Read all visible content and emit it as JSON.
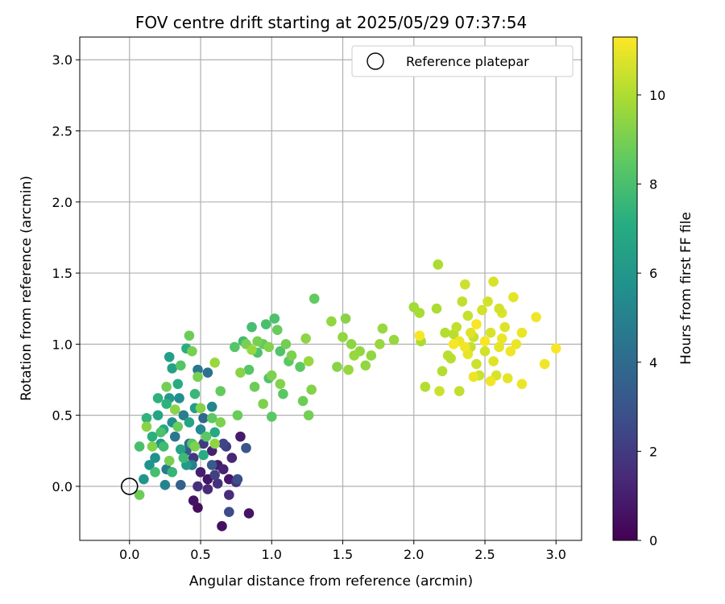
{
  "chart_data": {
    "type": "scatter",
    "title": "FOV centre drift starting at 2025/05/29 07:37:54",
    "xlabel": "Angular distance from reference (arcmin)",
    "ylabel": "Rotation from reference (arcmin)",
    "xlim": [
      -0.35,
      3.18
    ],
    "ylim": [
      -0.38,
      3.16
    ],
    "xticks": [
      "0.0",
      "0.5",
      "1.0",
      "1.5",
      "2.0",
      "2.5",
      "3.0"
    ],
    "yticks": [
      "0.0",
      "0.5",
      "1.0",
      "1.5",
      "2.0",
      "2.5",
      "3.0"
    ],
    "grid": true,
    "legend": {
      "placement": "top-right",
      "entries": [
        {
          "label": "Reference platepar",
          "marker": "open-circle"
        }
      ]
    },
    "reference_point": {
      "x": 0.0,
      "y": 0.0
    },
    "colorbar": {
      "label": "Hours from first FF file",
      "colormap": "viridis",
      "range": [
        0,
        11.3
      ],
      "ticks": [
        "0",
        "2",
        "4",
        "6",
        "8",
        "10"
      ]
    },
    "series": [
      {
        "color_by": "hours",
        "points": [
          {
            "x": 0.48,
            "y": -0.15,
            "c": 0.4
          },
          {
            "x": 0.65,
            "y": -0.28,
            "c": 0.5
          },
          {
            "x": 0.84,
            "y": -0.19,
            "c": 0.6
          },
          {
            "x": 0.45,
            "y": -0.1,
            "c": 0.6
          },
          {
            "x": 0.55,
            "y": 0.05,
            "c": 0.7
          },
          {
            "x": 0.7,
            "y": 0.05,
            "c": 0.8
          },
          {
            "x": 0.62,
            "y": 0.15,
            "c": 0.9
          },
          {
            "x": 0.78,
            "y": 0.35,
            "c": 0.9
          },
          {
            "x": 0.5,
            "y": 0.1,
            "c": 1.0
          },
          {
            "x": 0.58,
            "y": 0.25,
            "c": 1.1
          },
          {
            "x": 0.66,
            "y": 0.12,
            "c": 1.2
          },
          {
            "x": 0.72,
            "y": 0.2,
            "c": 1.3
          },
          {
            "x": 0.55,
            "y": -0.02,
            "c": 1.4
          },
          {
            "x": 0.7,
            "y": -0.06,
            "c": 1.5
          },
          {
            "x": 0.48,
            "y": 0.0,
            "c": 1.6
          },
          {
            "x": 0.62,
            "y": 0.02,
            "c": 1.7
          },
          {
            "x": 0.75,
            "y": 0.03,
            "c": 1.8
          },
          {
            "x": 0.45,
            "y": 0.2,
            "c": 1.9
          },
          {
            "x": 0.52,
            "y": 0.3,
            "c": 2.0
          },
          {
            "x": 0.68,
            "y": 0.28,
            "c": 2.1
          },
          {
            "x": 0.6,
            "y": 0.08,
            "c": 2.2
          },
          {
            "x": 0.66,
            "y": 0.3,
            "c": 2.4
          },
          {
            "x": 0.7,
            "y": -0.18,
            "c": 2.6
          },
          {
            "x": 0.76,
            "y": 0.05,
            "c": 2.8
          },
          {
            "x": 0.82,
            "y": 0.27,
            "c": 3.0
          },
          {
            "x": 0.4,
            "y": 0.25,
            "c": 3.2
          },
          {
            "x": 0.58,
            "y": 0.15,
            "c": 3.3
          },
          {
            "x": 0.36,
            "y": 0.01,
            "c": 3.5
          },
          {
            "x": 0.52,
            "y": 0.48,
            "c": 3.8
          },
          {
            "x": 0.42,
            "y": 0.3,
            "c": 4.0
          },
          {
            "x": 0.55,
            "y": 0.8,
            "c": 4.3
          },
          {
            "x": 0.48,
            "y": 0.82,
            "c": 4.5
          },
          {
            "x": 0.32,
            "y": 0.35,
            "c": 4.6
          },
          {
            "x": 0.26,
            "y": 0.12,
            "c": 4.7
          },
          {
            "x": 0.38,
            "y": 0.5,
            "c": 4.8
          },
          {
            "x": 0.44,
            "y": 0.15,
            "c": 5.0
          },
          {
            "x": 0.25,
            "y": 0.01,
            "c": 5.1
          },
          {
            "x": 0.58,
            "y": 0.56,
            "c": 5.2
          },
          {
            "x": 0.5,
            "y": 0.4,
            "c": 5.4
          },
          {
            "x": 0.35,
            "y": 0.62,
            "c": 5.5
          },
          {
            "x": 0.3,
            "y": 0.45,
            "c": 5.6
          },
          {
            "x": 0.18,
            "y": 0.2,
            "c": 5.7
          },
          {
            "x": 0.14,
            "y": 0.15,
            "c": 5.8
          },
          {
            "x": 0.1,
            "y": 0.05,
            "c": 5.9
          },
          {
            "x": 0.22,
            "y": 0.3,
            "c": 6.0
          },
          {
            "x": 0.28,
            "y": 0.62,
            "c": 6.1
          },
          {
            "x": 0.4,
            "y": 0.15,
            "c": 6.2
          },
          {
            "x": 0.46,
            "y": 0.55,
            "c": 6.3
          },
          {
            "x": 0.28,
            "y": 0.91,
            "c": 6.4
          },
          {
            "x": 0.3,
            "y": 0.83,
            "c": 6.5
          },
          {
            "x": 0.36,
            "y": 0.26,
            "c": 6.5
          },
          {
            "x": 0.42,
            "y": 0.45,
            "c": 6.6
          },
          {
            "x": 0.2,
            "y": 0.5,
            "c": 6.7
          },
          {
            "x": 0.24,
            "y": 0.4,
            "c": 6.8
          },
          {
            "x": 0.6,
            "y": 0.38,
            "c": 6.9
          },
          {
            "x": 0.52,
            "y": 0.22,
            "c": 7.0
          },
          {
            "x": 0.34,
            "y": 0.72,
            "c": 7.0
          },
          {
            "x": 0.4,
            "y": 0.97,
            "c": 7.1
          },
          {
            "x": 0.16,
            "y": 0.35,
            "c": 7.2
          },
          {
            "x": 0.2,
            "y": 0.62,
            "c": 7.3
          },
          {
            "x": 0.26,
            "y": 0.58,
            "c": 7.3
          },
          {
            "x": 0.12,
            "y": 0.48,
            "c": 7.4
          },
          {
            "x": 0.3,
            "y": 0.1,
            "c": 7.5
          },
          {
            "x": 0.46,
            "y": 0.65,
            "c": 7.6
          },
          {
            "x": 0.38,
            "y": 0.2,
            "c": 7.7
          },
          {
            "x": 0.24,
            "y": 0.28,
            "c": 7.8
          },
          {
            "x": 0.18,
            "y": 0.1,
            "c": 7.9
          },
          {
            "x": 0.07,
            "y": 0.28,
            "c": 8.0
          },
          {
            "x": 0.22,
            "y": 0.38,
            "c": 8.1
          },
          {
            "x": 0.44,
            "y": 0.3,
            "c": 8.2
          },
          {
            "x": 0.36,
            "y": 0.85,
            "c": 8.3
          },
          {
            "x": 0.54,
            "y": 0.35,
            "c": 8.4
          },
          {
            "x": 0.58,
            "y": 0.48,
            "c": 8.5
          },
          {
            "x": 0.64,
            "y": 0.67,
            "c": 8.6
          },
          {
            "x": 0.34,
            "y": 0.42,
            "c": 8.7
          },
          {
            "x": 0.07,
            "y": -0.06,
            "c": 8.8
          },
          {
            "x": 0.42,
            "y": 1.06,
            "c": 8.8
          },
          {
            "x": 0.26,
            "y": 0.7,
            "c": 8.9
          },
          {
            "x": 0.28,
            "y": 0.18,
            "c": 9.0
          },
          {
            "x": 0.48,
            "y": 0.77,
            "c": 9.0
          },
          {
            "x": 0.44,
            "y": 0.95,
            "c": 9.0
          },
          {
            "x": 0.64,
            "y": 0.45,
            "c": 9.1
          },
          {
            "x": 0.46,
            "y": 0.28,
            "c": 9.1
          },
          {
            "x": 0.5,
            "y": 0.55,
            "c": 9.2
          },
          {
            "x": 0.16,
            "y": 0.28,
            "c": 9.2
          },
          {
            "x": 0.12,
            "y": 0.42,
            "c": 9.3
          },
          {
            "x": 0.32,
            "y": 0.54,
            "c": 9.3
          },
          {
            "x": 0.6,
            "y": 0.3,
            "c": 9.4
          },
          {
            "x": 0.8,
            "y": 1.02,
            "c": 7.8
          },
          {
            "x": 0.86,
            "y": 1.12,
            "c": 7.9
          },
          {
            "x": 0.96,
            "y": 1.14,
            "c": 8.0
          },
          {
            "x": 1.02,
            "y": 1.18,
            "c": 8.1
          },
          {
            "x": 0.9,
            "y": 0.94,
            "c": 8.1
          },
          {
            "x": 0.98,
            "y": 0.76,
            "c": 8.2
          },
          {
            "x": 1.06,
            "y": 0.95,
            "c": 8.2
          },
          {
            "x": 0.74,
            "y": 0.98,
            "c": 8.3
          },
          {
            "x": 0.84,
            "y": 0.82,
            "c": 8.3
          },
          {
            "x": 1.0,
            "y": 0.49,
            "c": 8.4
          },
          {
            "x": 1.08,
            "y": 0.65,
            "c": 8.4
          },
          {
            "x": 1.12,
            "y": 0.88,
            "c": 8.5
          },
          {
            "x": 1.2,
            "y": 0.84,
            "c": 8.5
          },
          {
            "x": 0.94,
            "y": 1.0,
            "c": 8.6
          },
          {
            "x": 1.3,
            "y": 1.32,
            "c": 8.6
          },
          {
            "x": 1.04,
            "y": 1.1,
            "c": 8.7
          },
          {
            "x": 0.76,
            "y": 0.5,
            "c": 8.7
          },
          {
            "x": 0.88,
            "y": 0.7,
            "c": 8.8
          },
          {
            "x": 1.22,
            "y": 0.6,
            "c": 8.8
          },
          {
            "x": 1.26,
            "y": 0.5,
            "c": 8.9
          },
          {
            "x": 1.1,
            "y": 1.0,
            "c": 8.9
          },
          {
            "x": 0.9,
            "y": 1.02,
            "c": 9.0
          },
          {
            "x": 0.82,
            "y": 1.0,
            "c": 9.0
          },
          {
            "x": 0.94,
            "y": 0.58,
            "c": 9.1
          },
          {
            "x": 1.0,
            "y": 0.78,
            "c": 9.1
          },
          {
            "x": 1.14,
            "y": 0.92,
            "c": 9.1
          },
          {
            "x": 1.06,
            "y": 0.72,
            "c": 9.2
          },
          {
            "x": 1.28,
            "y": 0.68,
            "c": 9.2
          },
          {
            "x": 0.98,
            "y": 0.98,
            "c": 9.2
          },
          {
            "x": 0.78,
            "y": 0.8,
            "c": 9.3
          },
          {
            "x": 1.46,
            "y": 0.84,
            "c": 9.3
          },
          {
            "x": 1.52,
            "y": 1.18,
            "c": 9.3
          },
          {
            "x": 1.24,
            "y": 1.04,
            "c": 9.4
          },
          {
            "x": 1.56,
            "y": 1.0,
            "c": 9.4
          },
          {
            "x": 1.62,
            "y": 0.95,
            "c": 9.5
          },
          {
            "x": 1.7,
            "y": 0.92,
            "c": 9.5
          },
          {
            "x": 1.66,
            "y": 0.85,
            "c": 9.5
          },
          {
            "x": 1.42,
            "y": 1.16,
            "c": 9.5
          },
          {
            "x": 1.78,
            "y": 1.11,
            "c": 9.6
          },
          {
            "x": 1.76,
            "y": 1.0,
            "c": 9.6
          },
          {
            "x": 1.86,
            "y": 1.03,
            "c": 9.6
          },
          {
            "x": 1.54,
            "y": 0.82,
            "c": 9.6
          },
          {
            "x": 1.58,
            "y": 0.92,
            "c": 9.6
          },
          {
            "x": 1.26,
            "y": 0.88,
            "c": 9.6
          },
          {
            "x": 0.86,
            "y": 0.96,
            "c": 9.6
          },
          {
            "x": 0.6,
            "y": 0.87,
            "c": 9.6
          },
          {
            "x": 1.5,
            "y": 1.05,
            "c": 9.5
          },
          {
            "x": 2.0,
            "y": 1.26,
            "c": 9.8
          },
          {
            "x": 2.04,
            "y": 1.22,
            "c": 9.9
          },
          {
            "x": 2.16,
            "y": 1.25,
            "c": 10.0
          },
          {
            "x": 2.17,
            "y": 1.56,
            "c": 10.0
          },
          {
            "x": 2.08,
            "y": 0.7,
            "c": 10.1
          },
          {
            "x": 2.2,
            "y": 0.81,
            "c": 10.1
          },
          {
            "x": 2.24,
            "y": 0.92,
            "c": 10.2
          },
          {
            "x": 2.28,
            "y": 1.07,
            "c": 10.2
          },
          {
            "x": 2.32,
            "y": 0.67,
            "c": 10.3
          },
          {
            "x": 2.34,
            "y": 1.3,
            "c": 10.3
          },
          {
            "x": 2.38,
            "y": 1.2,
            "c": 10.4
          },
          {
            "x": 2.4,
            "y": 0.98,
            "c": 10.4
          },
          {
            "x": 2.36,
            "y": 1.42,
            "c": 10.5
          },
          {
            "x": 2.44,
            "y": 0.86,
            "c": 10.5
          },
          {
            "x": 2.5,
            "y": 0.95,
            "c": 10.6
          },
          {
            "x": 2.52,
            "y": 1.3,
            "c": 10.6
          },
          {
            "x": 2.56,
            "y": 1.44,
            "c": 10.7
          },
          {
            "x": 2.58,
            "y": 0.78,
            "c": 10.7
          },
          {
            "x": 2.62,
            "y": 1.22,
            "c": 10.8
          },
          {
            "x": 2.64,
            "y": 1.12,
            "c": 10.8
          },
          {
            "x": 2.66,
            "y": 0.76,
            "c": 10.9
          },
          {
            "x": 2.7,
            "y": 1.33,
            "c": 10.9
          },
          {
            "x": 2.72,
            "y": 1.0,
            "c": 11.0
          },
          {
            "x": 2.76,
            "y": 1.08,
            "c": 11.0
          },
          {
            "x": 2.76,
            "y": 0.72,
            "c": 11.0
          },
          {
            "x": 2.86,
            "y": 1.19,
            "c": 11.1
          },
          {
            "x": 2.92,
            "y": 0.86,
            "c": 11.1
          },
          {
            "x": 3.0,
            "y": 0.97,
            "c": 11.2
          },
          {
            "x": 2.05,
            "y": 1.02,
            "c": 10.0
          },
          {
            "x": 2.22,
            "y": 1.08,
            "c": 10.1
          },
          {
            "x": 2.26,
            "y": 0.9,
            "c": 10.2
          },
          {
            "x": 2.3,
            "y": 1.12,
            "c": 10.3
          },
          {
            "x": 2.42,
            "y": 1.05,
            "c": 10.4
          },
          {
            "x": 2.46,
            "y": 0.78,
            "c": 10.5
          },
          {
            "x": 2.48,
            "y": 1.24,
            "c": 10.6
          },
          {
            "x": 2.54,
            "y": 1.08,
            "c": 10.7
          },
          {
            "x": 2.56,
            "y": 0.88,
            "c": 10.8
          },
          {
            "x": 2.6,
            "y": 0.98,
            "c": 10.9
          },
          {
            "x": 2.62,
            "y": 1.04,
            "c": 11.0
          },
          {
            "x": 2.68,
            "y": 0.95,
            "c": 11.1
          },
          {
            "x": 2.18,
            "y": 0.67,
            "c": 10.5
          },
          {
            "x": 2.38,
            "y": 0.93,
            "c": 10.9
          },
          {
            "x": 2.42,
            "y": 0.77,
            "c": 11.0
          },
          {
            "x": 2.54,
            "y": 0.74,
            "c": 11.1
          },
          {
            "x": 2.32,
            "y": 1.02,
            "c": 11.0
          },
          {
            "x": 2.36,
            "y": 0.98,
            "c": 11.1
          },
          {
            "x": 2.44,
            "y": 1.14,
            "c": 11.2
          },
          {
            "x": 2.28,
            "y": 1.0,
            "c": 11.2
          },
          {
            "x": 2.04,
            "y": 1.06,
            "c": 11.2
          },
          {
            "x": 2.5,
            "y": 1.02,
            "c": 11.2
          },
          {
            "x": 2.6,
            "y": 1.25,
            "c": 10.6
          },
          {
            "x": 2.4,
            "y": 1.08,
            "c": 10.8
          }
        ]
      }
    ]
  }
}
